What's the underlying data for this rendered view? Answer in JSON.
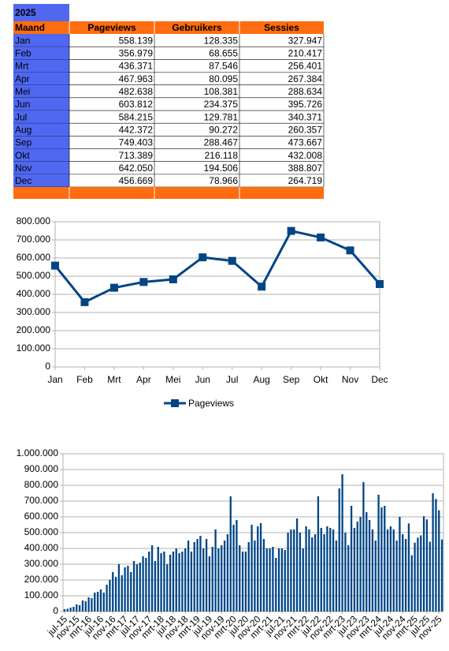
{
  "table": {
    "title": "2025",
    "header": [
      "Maand",
      "Pageviews",
      "Gebruikers",
      "Sessies"
    ],
    "rows": [
      [
        "Jan",
        "558.139",
        "128.335",
        "327.947"
      ],
      [
        "Feb",
        "356.979",
        "68.655",
        "210.417"
      ],
      [
        "Mrt",
        "436.371",
        "87.546",
        "256.401"
      ],
      [
        "Apr",
        "467.963",
        "80.095",
        "267.384"
      ],
      [
        "Mei",
        "482.638",
        "108.381",
        "288.634"
      ],
      [
        "Jun",
        "603.812",
        "234.375",
        "395.726"
      ],
      [
        "Jul",
        "584.215",
        "129.781",
        "340.371"
      ],
      [
        "Aug",
        "442.372",
        "90.272",
        "260.357"
      ],
      [
        "Sep",
        "749.403",
        "288.467",
        "473.667"
      ],
      [
        "Okt",
        "713.389",
        "216.118",
        "432.008"
      ],
      [
        "Nov",
        "642.050",
        "194.506",
        "388.807"
      ],
      [
        "Dec",
        "456.669",
        "78.966",
        "264.719"
      ]
    ]
  },
  "chart_data": [
    {
      "type": "line",
      "categories": [
        "Jan",
        "Feb",
        "Mrt",
        "Apr",
        "Mei",
        "Jun",
        "Jul",
        "Aug",
        "Sep",
        "Okt",
        "Nov",
        "Dec"
      ],
      "series": [
        {
          "name": "Pageviews",
          "color": "#004586",
          "values": [
            558139,
            356979,
            436371,
            467963,
            482638,
            603812,
            584215,
            442372,
            749403,
            713389,
            642050,
            456669
          ]
        }
      ],
      "ylim": [
        0,
        800000
      ],
      "yticks": [
        0,
        {
          "value": 100000,
          "label": "100.000"
        },
        {
          "value": 200000,
          "label": "200.000"
        },
        {
          "value": 300000,
          "label": "300.000"
        },
        {
          "value": 400000,
          "label": "400.000"
        },
        {
          "value": 500000,
          "label": "500.000"
        },
        {
          "value": 600000,
          "label": "600.000"
        },
        {
          "value": 700000,
          "label": "700.000"
        },
        {
          "value": 800000,
          "label": "800.000"
        }
      ],
      "grid": true,
      "legend": "bottom"
    },
    {
      "type": "bar",
      "categories": [
        "jul-15",
        null,
        null,
        null,
        "nov-15",
        null,
        null,
        null,
        "mrt-16",
        null,
        null,
        null,
        "jul-16",
        null,
        null,
        null,
        "nov-16",
        null,
        null,
        null,
        "mrt-17",
        null,
        null,
        null,
        "jul-17",
        null,
        null,
        null,
        "nov-17",
        null,
        null,
        null,
        "mrt-18",
        null,
        null,
        null,
        "jul-18",
        null,
        null,
        null,
        "nov-18",
        null,
        null,
        null,
        "mrt-19",
        null,
        null,
        null,
        "jul-19",
        null,
        null,
        null,
        "nov-19",
        null,
        null,
        null,
        "mrt-20",
        null,
        null,
        null,
        "jul-20",
        null,
        null,
        null,
        "nov-20",
        null,
        null,
        null,
        "mrt-21",
        null,
        null,
        null,
        "jul-21",
        null,
        null,
        null,
        "nov-21",
        null,
        null,
        null,
        "mrt-22",
        null,
        null,
        null,
        "jul-22",
        null,
        null,
        null,
        "nov-22",
        null,
        null,
        null,
        "mrt-23",
        null,
        null,
        null,
        "jul-23",
        null,
        null,
        null,
        "nov-23",
        null,
        null,
        null,
        "mrt-24",
        null,
        null,
        null,
        "jul-24",
        null,
        null,
        null,
        "nov-24",
        null,
        null,
        null,
        "mrt-25",
        null,
        null,
        null,
        "jul-25",
        null,
        null,
        null,
        "nov-25",
        null
      ],
      "values": [
        15000,
        18000,
        25000,
        30000,
        45000,
        40000,
        70000,
        65000,
        90000,
        85000,
        120000,
        125000,
        140000,
        120000,
        170000,
        200000,
        250000,
        220000,
        300000,
        230000,
        280000,
        290000,
        250000,
        320000,
        300000,
        310000,
        350000,
        340000,
        380000,
        420000,
        320000,
        410000,
        370000,
        380000,
        300000,
        360000,
        380000,
        400000,
        370000,
        380000,
        400000,
        450000,
        380000,
        440000,
        460000,
        480000,
        400000,
        460000,
        350000,
        410000,
        520000,
        400000,
        420000,
        450000,
        490000,
        730000,
        550000,
        580000,
        420000,
        380000,
        380000,
        440000,
        550000,
        450000,
        540000,
        560000,
        460000,
        400000,
        400000,
        410000,
        340000,
        400000,
        400000,
        390000,
        500000,
        520000,
        520000,
        590000,
        500000,
        400000,
        540000,
        520000,
        470000,
        490000,
        730000,
        530000,
        490000,
        540000,
        530000,
        520000,
        450000,
        780000,
        870000,
        500000,
        420000,
        670000,
        530000,
        570000,
        600000,
        820000,
        630000,
        580000,
        520000,
        450000,
        740000,
        660000,
        670000,
        520000,
        540000,
        520000,
        450000,
        600000,
        490000,
        460000,
        558139,
        356979,
        436371,
        467963,
        482638,
        603812,
        584215,
        442372,
        749403,
        713389,
        642050,
        456669
      ],
      "color": "#004586",
      "ylim": [
        0,
        1000000
      ],
      "yticks": [
        0,
        {
          "value": 100000,
          "label": "100.000"
        },
        {
          "value": 200000,
          "label": "200.000"
        },
        {
          "value": 300000,
          "label": "300.000"
        },
        {
          "value": 400000,
          "label": "400.000"
        },
        {
          "value": 500000,
          "label": "500.000"
        },
        {
          "value": 600000,
          "label": "600.000"
        },
        {
          "value": 700000,
          "label": "700.000"
        },
        {
          "value": 800000,
          "label": "800.000"
        },
        {
          "value": 900000,
          "label": "900.000"
        },
        {
          "value": 1000000,
          "label": "1.000.000"
        }
      ],
      "grid": true
    }
  ]
}
